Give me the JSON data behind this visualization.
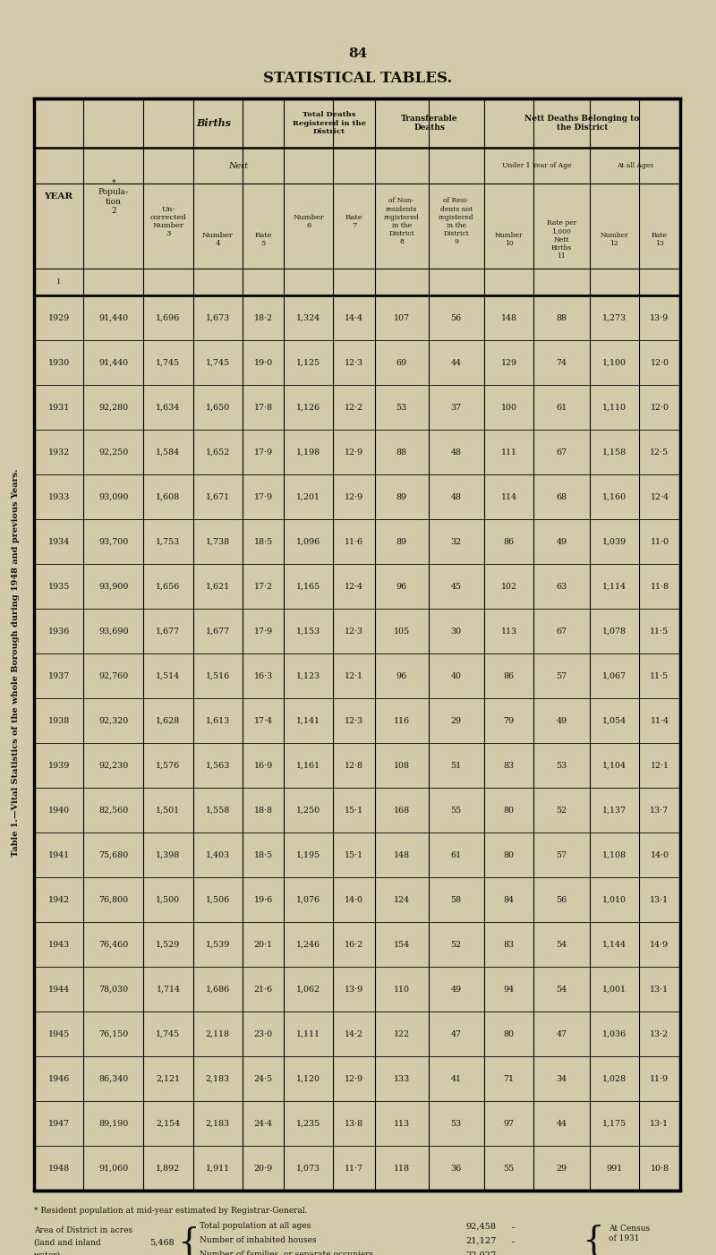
{
  "page_number": "84",
  "title": "STATISTICAL TABLES.",
  "table_title": "Table 1.—Vital Statistics of the whole Borough during 1948 and previous Years.",
  "background_color": "#d4c9a8",
  "text_color": "#111111",
  "years": [
    1929,
    1930,
    1931,
    1932,
    1933,
    1934,
    1935,
    1936,
    1937,
    1938,
    1939,
    1940,
    1941,
    1942,
    1943,
    1944,
    1945,
    1946,
    1947,
    1948
  ],
  "population": [
    91440,
    91440,
    92280,
    92250,
    93090,
    93700,
    93900,
    93690,
    92760,
    92320,
    92230,
    82560,
    75680,
    76800,
    76460,
    78030,
    76150,
    86340,
    89190,
    91060
  ],
  "births_uncorrected": [
    1696,
    1745,
    1634,
    1584,
    1608,
    1753,
    1656,
    1677,
    1514,
    1628,
    1576,
    1501,
    1398,
    1500,
    1529,
    1714,
    1745,
    2121,
    2154,
    1892
  ],
  "births_nett_number": [
    1673,
    1745,
    1650,
    1652,
    1671,
    1738,
    1621,
    1677,
    1516,
    1613,
    1563,
    1558,
    1403,
    1506,
    1539,
    1686,
    2118,
    2183,
    2183,
    1911
  ],
  "births_nett_rate": [
    "18·2",
    "19·0",
    "17·8",
    "17·9",
    "17·9",
    "18·5",
    "17·2",
    "17·9",
    "16·3",
    "17·4",
    "16·9",
    "18·8",
    "18·5",
    "19·6",
    "20·1",
    "21·6",
    "23·0",
    "24·5",
    "24·4",
    "20·9"
  ],
  "total_deaths_number": [
    1324,
    1125,
    1126,
    1198,
    1201,
    1096,
    1165,
    1153,
    1123,
    1141,
    1161,
    1250,
    1195,
    1076,
    1246,
    1062,
    1111,
    1120,
    1235,
    1073
  ],
  "total_deaths_rate": [
    "14·4",
    "12·3",
    "12·2",
    "12·9",
    "12·9",
    "11·6",
    "12·4",
    "12·3",
    "12·1",
    "12·3",
    "12·8",
    "15·1",
    "15·1",
    "14·0",
    "16·2",
    "13·9",
    "14·2",
    "12·9",
    "13·8",
    "11·7"
  ],
  "transferable_non_residents": [
    107,
    69,
    53,
    88,
    89,
    89,
    96,
    105,
    96,
    116,
    108,
    168,
    148,
    124,
    154,
    110,
    122,
    133,
    113,
    118
  ],
  "transferable_resi_not_in_district": [
    56,
    44,
    37,
    48,
    48,
    32,
    45,
    30,
    40,
    29,
    51,
    55,
    61,
    58,
    52,
    49,
    47,
    41,
    53,
    36
  ],
  "nett_deaths_under1_number": [
    148,
    129,
    100,
    111,
    114,
    86,
    102,
    113,
    86,
    79,
    83,
    80,
    80,
    84,
    83,
    94,
    80,
    71,
    97,
    55
  ],
  "nett_deaths_under1_rate": [
    88,
    74,
    61,
    67,
    68,
    49,
    63,
    67,
    57,
    49,
    53,
    52,
    57,
    56,
    54,
    54,
    47,
    34,
    44,
    29
  ],
  "nett_deaths_all_number": [
    1273,
    1100,
    1110,
    1158,
    1160,
    1039,
    1114,
    1078,
    1067,
    1054,
    1104,
    1137,
    1108,
    1010,
    1144,
    1001,
    1036,
    1028,
    1175,
    991
  ],
  "nett_deaths_all_rate": [
    "13·9",
    "12·0",
    "12·0",
    "12·5",
    "12·4",
    "11·0",
    "11·8",
    "11·5",
    "11·5",
    "11·4",
    "12·1",
    "13·7",
    "14·0",
    "13·1",
    "14·9",
    "13·1",
    "13·2",
    "11·9",
    "13·1",
    "10·8"
  ]
}
